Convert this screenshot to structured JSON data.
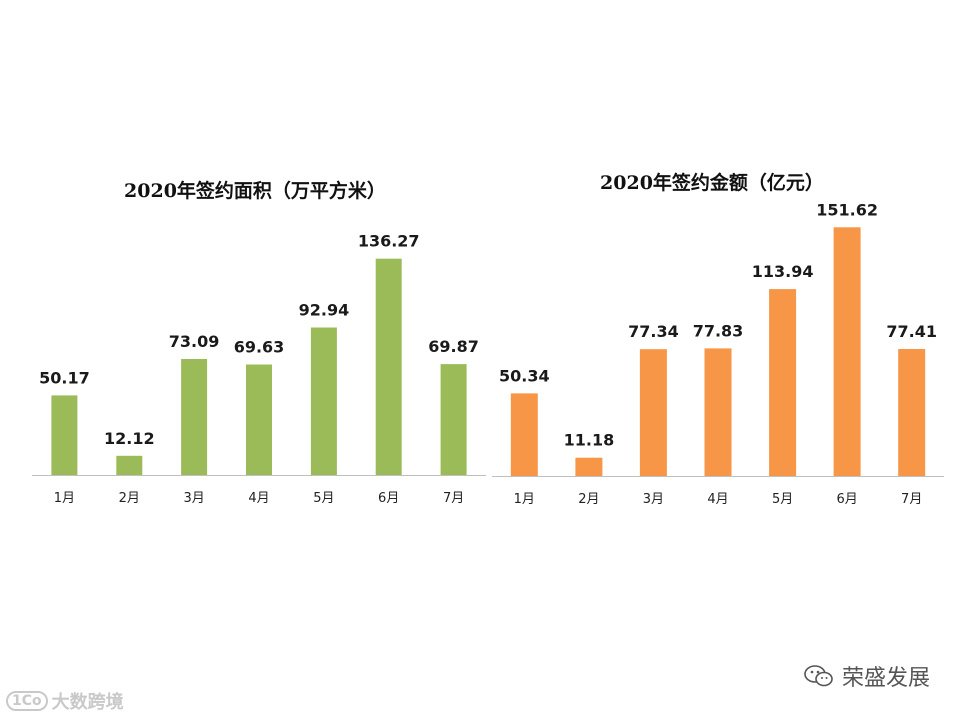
{
  "chart_data": [
    {
      "type": "bar",
      "title": "2020年签约面积（万平方米）",
      "categories": [
        "1月",
        "2月",
        "3月",
        "4月",
        "5月",
        "6月",
        "7月"
      ],
      "values": [
        50.17,
        12.12,
        73.09,
        69.63,
        92.94,
        136.27,
        69.87
      ],
      "value_labels": [
        "50.17",
        "12.12",
        "73.09",
        "69.63",
        "92.94",
        "136.27",
        "69.87"
      ],
      "color": "#9BBB59",
      "xlabel": "",
      "ylabel": "",
      "ylim": [
        0,
        160
      ],
      "grid": false
    },
    {
      "type": "bar",
      "title": "2020年签约金额（亿元）",
      "categories": [
        "1月",
        "2月",
        "3月",
        "4月",
        "5月",
        "6月",
        "7月"
      ],
      "values": [
        50.34,
        11.18,
        77.34,
        77.83,
        113.94,
        151.62,
        77.41
      ],
      "value_labels": [
        "50.34",
        "11.18",
        "77.34",
        "77.83",
        "113.94",
        "151.62",
        "77.41"
      ],
      "color": "#F79646",
      "xlabel": "",
      "ylabel": "",
      "ylim": [
        0,
        160
      ],
      "grid": false
    }
  ],
  "watermarks": {
    "bottom_left_logo": "1Co",
    "bottom_left_text": "大数跨境",
    "bottom_right_icon": "wechat-icon",
    "bottom_right_text": "荣盛发展"
  }
}
